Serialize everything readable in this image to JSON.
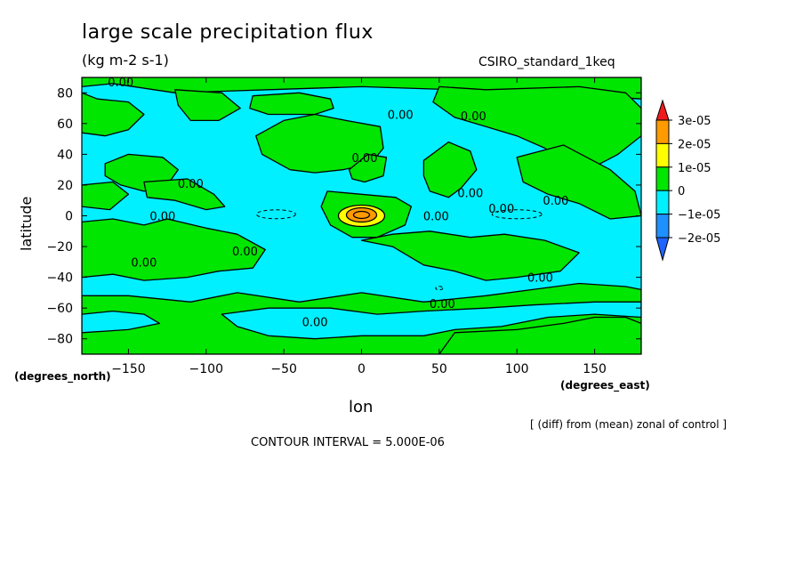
{
  "chart_data": {
    "type": "heatmap",
    "title": "large scale precipitation flux",
    "subtitle": "(kg m-2 s-1)",
    "dataset_label": "CSIRO_standard_1keq",
    "xlabel": "lon",
    "ylabel": "latitude",
    "x_units": "(degrees_east)",
    "y_units": "(degrees_north)",
    "xlim": [
      -180,
      180
    ],
    "ylim": [
      -90,
      90
    ],
    "x_ticks": [
      -150,
      -100,
      -50,
      0,
      50,
      100,
      150
    ],
    "y_ticks": [
      80,
      60,
      40,
      20,
      0,
      -20,
      -40,
      -60,
      -80
    ],
    "note": "[ (diff) from (mean) zonal of control ]",
    "contour_interval_text": "CONTOUR INTERVAL = 5.000E-06",
    "contour_label": "0.00",
    "colorbar": {
      "levels": [
        "3e-05",
        "2e-05",
        "1e-05",
        "0",
        "−1e-05",
        "−2e-05"
      ],
      "colors": [
        "#ee1c1c",
        "#ff9a00",
        "#ffff00",
        "#00e600",
        "#00f0ff",
        "#1e90ff",
        "#1e64ff"
      ]
    },
    "background_color": "#00f0ff",
    "positive_color": "#00e600",
    "peak": {
      "lon": 0,
      "lat": 0,
      "value_range": "1e-05 to 3e-05"
    }
  }
}
